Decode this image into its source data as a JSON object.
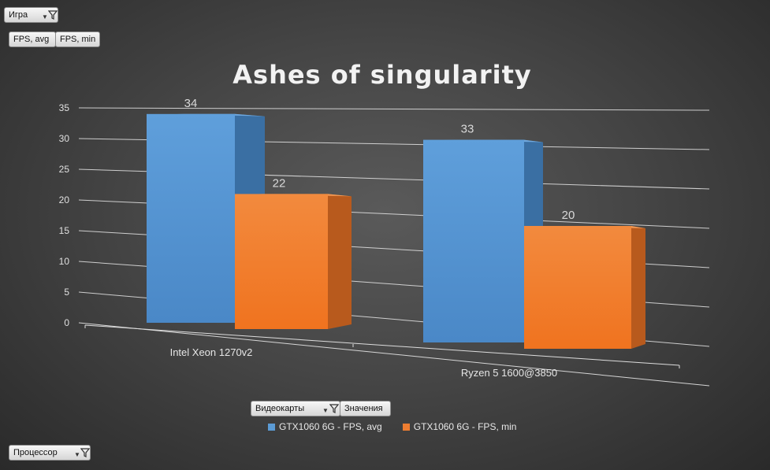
{
  "filters": {
    "game": {
      "label": "Игра"
    },
    "values": [
      "FPS, avg",
      "FPS, min"
    ],
    "videocards": {
      "label": "Видеокарты"
    },
    "values_label": "Значения",
    "processor": {
      "label": "Процессор"
    }
  },
  "icons": {
    "filter": "filter-icon",
    "dropdown": "dropdown-arrow-icon"
  },
  "colors": {
    "series_avg": "#5b9bd5",
    "series_min": "#ed7d31"
  },
  "chart_data": {
    "type": "bar",
    "title": "Ashes of singularity",
    "categories": [
      "Intel Xeon 1270v2",
      "Ryzen 5 1600@3850"
    ],
    "series": [
      {
        "name": "GTX1060 6G - FPS, avg",
        "values": [
          34,
          33
        ]
      },
      {
        "name": "GTX1060 6G - FPS, min",
        "values": [
          22,
          20
        ]
      }
    ],
    "ylim": [
      0,
      35
    ],
    "yticks": [
      0,
      5,
      10,
      15,
      20,
      25,
      30,
      35
    ],
    "grid": true,
    "legend": "bottom",
    "style": "3d-column"
  }
}
